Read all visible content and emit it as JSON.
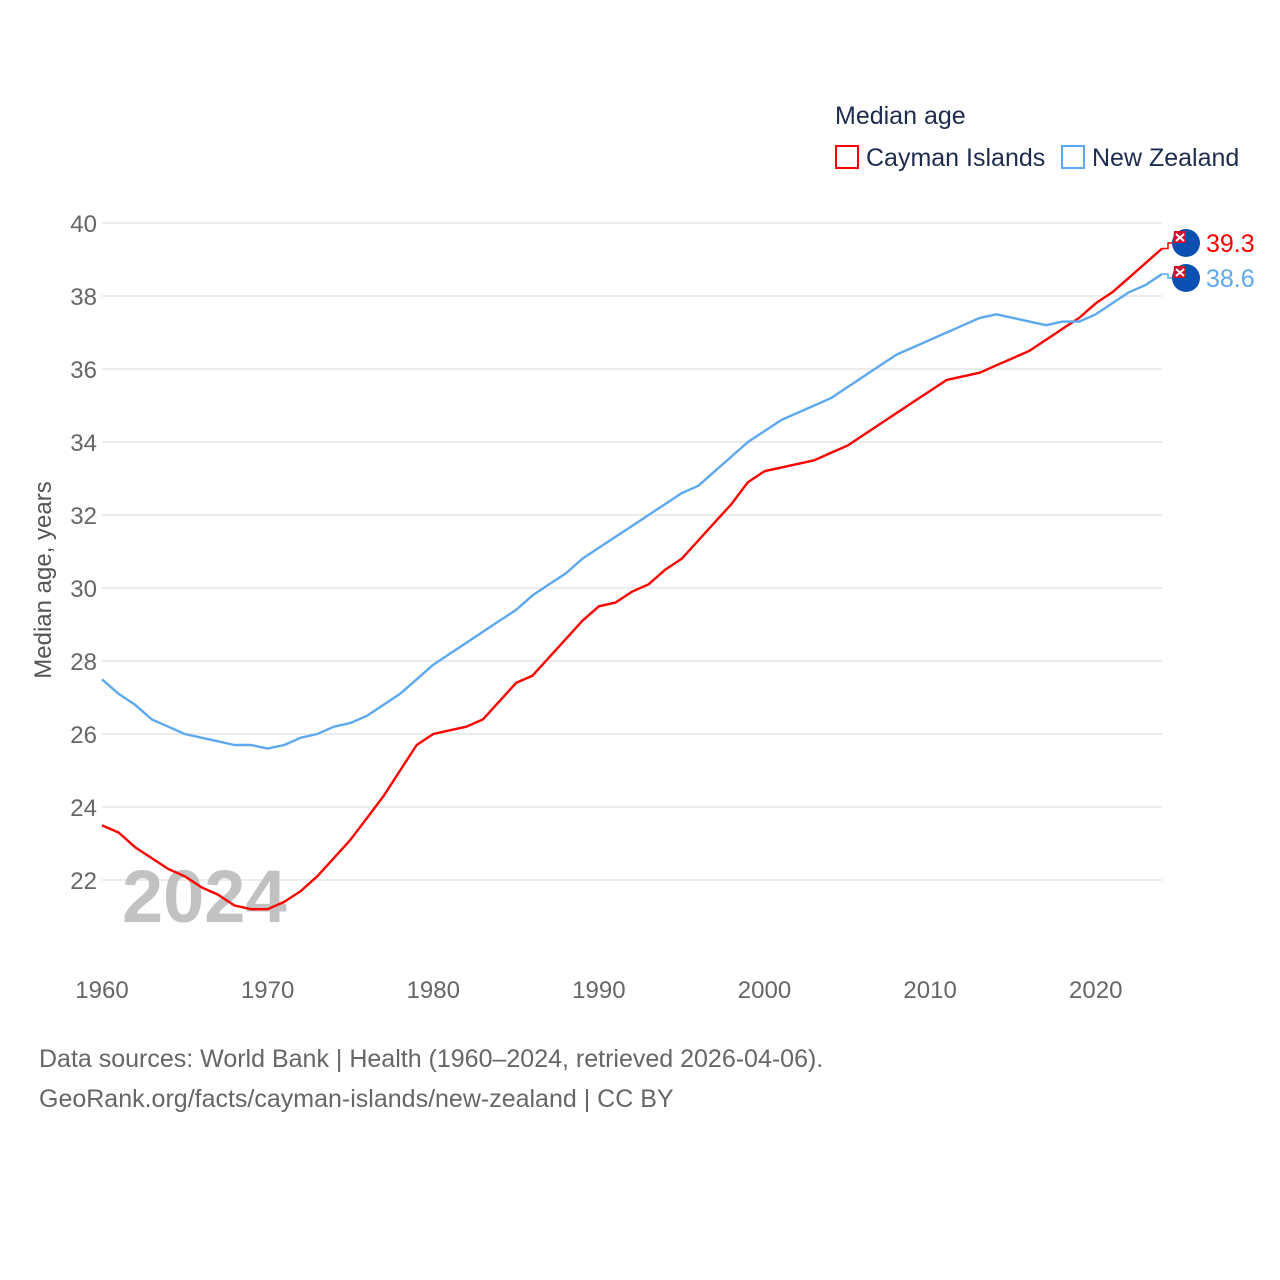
{
  "chart_data": {
    "type": "line",
    "title": "",
    "legend_title": "Median age",
    "legend_placement": "top-right",
    "ylabel": "Median age, years",
    "xlabel": "",
    "ylim": [
      20,
      40
    ],
    "xlim": [
      1960,
      2024
    ],
    "yticks": [
      22,
      24,
      26,
      28,
      30,
      32,
      34,
      36,
      38,
      40
    ],
    "xticks": [
      1960,
      1970,
      1980,
      1990,
      2000,
      2010,
      2020
    ],
    "grid": true,
    "year_watermark": "2024",
    "x": [
      1960,
      1961,
      1962,
      1963,
      1964,
      1965,
      1966,
      1967,
      1968,
      1969,
      1970,
      1971,
      1972,
      1973,
      1974,
      1975,
      1976,
      1977,
      1978,
      1979,
      1980,
      1981,
      1982,
      1983,
      1984,
      1985,
      1986,
      1987,
      1988,
      1989,
      1990,
      1991,
      1992,
      1993,
      1994,
      1995,
      1996,
      1997,
      1998,
      1999,
      2000,
      2001,
      2002,
      2003,
      2004,
      2005,
      2006,
      2007,
      2008,
      2009,
      2010,
      2011,
      2012,
      2013,
      2014,
      2015,
      2016,
      2017,
      2018,
      2019,
      2020,
      2021,
      2022,
      2023,
      2024
    ],
    "series": [
      {
        "name": "Cayman Islands",
        "color": "#ff0000",
        "end_label": "39.3",
        "values": [
          23.5,
          23.3,
          22.9,
          22.6,
          22.3,
          22.1,
          21.8,
          21.6,
          21.3,
          21.2,
          21.2,
          21.4,
          21.7,
          22.1,
          22.6,
          23.1,
          23.7,
          24.3,
          25.0,
          25.7,
          26.0,
          26.1,
          26.2,
          26.4,
          26.9,
          27.4,
          27.6,
          28.1,
          28.6,
          29.1,
          29.5,
          29.6,
          29.9,
          30.1,
          30.5,
          30.8,
          31.3,
          31.8,
          32.3,
          32.9,
          33.2,
          33.3,
          33.4,
          33.5,
          33.7,
          33.9,
          34.2,
          34.5,
          34.8,
          35.1,
          35.4,
          35.7,
          35.8,
          35.9,
          36.1,
          36.3,
          36.5,
          36.8,
          37.1,
          37.4,
          37.8,
          38.1,
          38.5,
          38.9,
          39.3
        ]
      },
      {
        "name": "New Zealand",
        "color": "#5ea8f0",
        "end_label": "38.6",
        "values": [
          27.5,
          27.1,
          26.8,
          26.4,
          26.2,
          26.0,
          25.9,
          25.8,
          25.7,
          25.7,
          25.6,
          25.7,
          25.9,
          26.0,
          26.2,
          26.3,
          26.5,
          26.8,
          27.1,
          27.5,
          27.9,
          28.2,
          28.5,
          28.8,
          29.1,
          29.4,
          29.8,
          30.1,
          30.4,
          30.8,
          31.1,
          31.4,
          31.7,
          32.0,
          32.3,
          32.6,
          32.8,
          33.2,
          33.6,
          34.0,
          34.3,
          34.6,
          34.8,
          35.0,
          35.2,
          35.5,
          35.8,
          36.1,
          36.4,
          36.6,
          36.8,
          37.0,
          37.2,
          37.4,
          37.5,
          37.4,
          37.3,
          37.2,
          37.3,
          37.3,
          37.5,
          37.8,
          38.1,
          38.3,
          38.6
        ]
      }
    ]
  },
  "footer": {
    "line1": "Data sources: World Bank | Health (1960–2024, retrieved 2026-04-06).",
    "line2": "GeoRank.org/facts/cayman-islands/new-zealand | CC BY"
  }
}
